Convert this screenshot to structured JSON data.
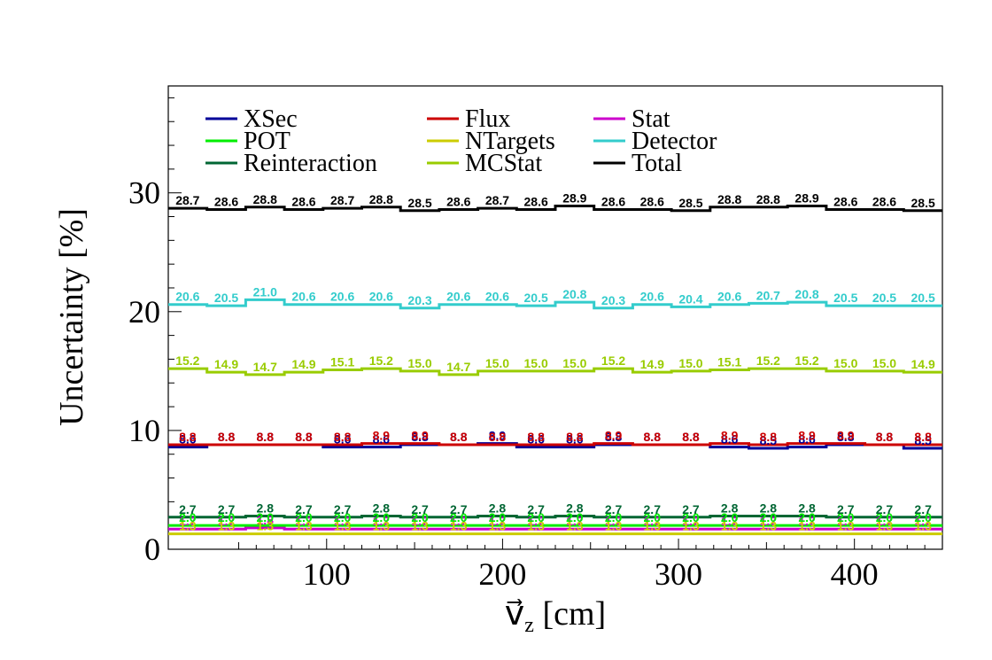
{
  "chart_data": {
    "type": "line",
    "title": "",
    "xlabel": "v_z [cm]",
    "ylabel": "Uncertainty [%]",
    "xlim": [
      10,
      450
    ],
    "ylim": [
      0,
      39
    ],
    "x_ticks": [
      100,
      200,
      300,
      400
    ],
    "y_ticks": [
      0,
      10,
      20,
      30
    ],
    "bin_edges": [
      10,
      32,
      54,
      76,
      98,
      120,
      142,
      164,
      186,
      208,
      230,
      252,
      274,
      296,
      318,
      340,
      362,
      384,
      406,
      428,
      450
    ],
    "grid": false,
    "legend_position": "top",
    "series": [
      {
        "name": "XSec",
        "color": "#000099",
        "values": [
          8.6,
          8.8,
          8.8,
          8.8,
          8.6,
          8.6,
          8.8,
          8.8,
          8.9,
          8.6,
          8.6,
          8.8,
          8.8,
          8.8,
          8.6,
          8.5,
          8.6,
          8.8,
          8.8,
          8.5
        ],
        "labels": [
          "8.6",
          "8.8",
          "8.8",
          "8.8",
          "8.6",
          "8.6",
          "8.8",
          "8.8",
          "8.9",
          "8.6",
          "8.6",
          "8.8",
          "8.8",
          "8.8",
          "8.6",
          "8.5",
          "8.6",
          "8.8",
          "8.8",
          "8.5"
        ]
      },
      {
        "name": "Flux",
        "color": "#cc0000",
        "values": [
          8.8,
          8.8,
          8.8,
          8.8,
          8.8,
          8.9,
          8.9,
          8.8,
          8.8,
          8.8,
          8.8,
          8.9,
          8.8,
          8.8,
          8.9,
          8.8,
          8.9,
          8.9,
          8.8,
          8.8
        ],
        "labels": [
          "8.8",
          "8.8",
          "8.8",
          "8.8",
          "8.8",
          "8.9",
          "8.9",
          "8.8",
          "8.8",
          "8.8",
          "8.8",
          "8.9",
          "8.8",
          "8.8",
          "8.9",
          "8.8",
          "8.9",
          "8.9",
          "8.8",
          "8.8"
        ]
      },
      {
        "name": "Stat",
        "color": "#cc00cc",
        "values": [
          1.7,
          1.7,
          1.8,
          1.7,
          1.7,
          1.7,
          1.7,
          1.7,
          1.7,
          1.7,
          1.7,
          1.7,
          1.7,
          1.7,
          1.7,
          1.7,
          1.7,
          1.7,
          1.7,
          1.7
        ],
        "labels": [
          "1.7",
          "1.7",
          "1.8",
          "1.7",
          "1.7",
          "1.7",
          "1.7",
          "1.7",
          "1.7",
          "1.7",
          "1.7",
          "1.7",
          "1.7",
          "1.7",
          "1.7",
          "1.7",
          "1.7",
          "1.7",
          "1.7",
          "1.7"
        ]
      },
      {
        "name": "POT",
        "color": "#00ee00",
        "values": [
          2.0,
          2.0,
          2.0,
          2.0,
          2.0,
          2.0,
          2.0,
          2.0,
          2.0,
          2.0,
          2.0,
          2.0,
          2.0,
          2.0,
          2.0,
          2.0,
          2.0,
          2.0,
          2.0,
          2.0
        ],
        "labels": [
          "2.0",
          "2.0",
          "2.0",
          "2.0",
          "2.0",
          "2.0",
          "2.0",
          "2.0",
          "2.0",
          "2.0",
          "2.0",
          "2.0",
          "2.0",
          "2.0",
          "2.0",
          "2.0",
          "2.0",
          "2.0",
          "2.0",
          "2.0"
        ]
      },
      {
        "name": "NTargets",
        "color": "#cccc00",
        "values": [
          1.3,
          1.3,
          1.3,
          1.3,
          1.3,
          1.3,
          1.3,
          1.3,
          1.3,
          1.3,
          1.3,
          1.3,
          1.3,
          1.3,
          1.3,
          1.3,
          1.3,
          1.3,
          1.3,
          1.3
        ],
        "labels": [
          "1.3",
          "1.3",
          "1.3",
          "1.3",
          "1.3",
          "1.3",
          "1.3",
          "1.3",
          "1.3",
          "1.3",
          "1.3",
          "1.3",
          "1.3",
          "1.3",
          "1.3",
          "1.3",
          "1.3",
          "1.3",
          "1.3",
          "1.3"
        ]
      },
      {
        "name": "Detector",
        "color": "#33cccc",
        "values": [
          20.6,
          20.5,
          21.0,
          20.6,
          20.6,
          20.6,
          20.3,
          20.6,
          20.6,
          20.5,
          20.8,
          20.3,
          20.6,
          20.4,
          20.6,
          20.7,
          20.8,
          20.5,
          20.5,
          20.5
        ],
        "labels": [
          "20.6",
          "20.5",
          "21.0",
          "20.6",
          "20.6",
          "20.6",
          "20.3",
          "20.6",
          "20.6",
          "20.5",
          "20.8",
          "20.3",
          "20.6",
          "20.4",
          "20.6",
          "20.7",
          "20.8",
          "20.5",
          "20.5",
          "20.5"
        ]
      },
      {
        "name": "Reinteraction",
        "color": "#006633",
        "values": [
          2.7,
          2.7,
          2.8,
          2.7,
          2.7,
          2.8,
          2.7,
          2.7,
          2.8,
          2.7,
          2.8,
          2.7,
          2.7,
          2.7,
          2.8,
          2.8,
          2.8,
          2.7,
          2.7,
          2.7
        ],
        "labels": [
          "2.7",
          "2.7",
          "2.8",
          "2.7",
          "2.7",
          "2.8",
          "2.7",
          "2.7",
          "2.8",
          "2.7",
          "2.8",
          "2.7",
          "2.7",
          "2.7",
          "2.8",
          "2.8",
          "2.8",
          "2.7",
          "2.7",
          "2.7"
        ]
      },
      {
        "name": "MCStat",
        "color": "#99cc00",
        "values": [
          15.2,
          14.9,
          14.7,
          14.9,
          15.1,
          15.2,
          15.0,
          14.7,
          15.0,
          15.0,
          15.0,
          15.2,
          14.9,
          15.0,
          15.1,
          15.2,
          15.2,
          15.0,
          15.0,
          14.9
        ],
        "labels": [
          "15.2",
          "14.9",
          "14.7",
          "14.9",
          "15.1",
          "15.2",
          "15.0",
          "14.7",
          "15.0",
          "15.0",
          "15.0",
          "15.2",
          "14.9",
          "15.0",
          "15.1",
          "15.2",
          "15.2",
          "15.0",
          "15.0",
          "14.9"
        ]
      },
      {
        "name": "Total",
        "color": "#000000",
        "values": [
          28.7,
          28.6,
          28.8,
          28.6,
          28.7,
          28.8,
          28.5,
          28.6,
          28.7,
          28.6,
          28.9,
          28.6,
          28.6,
          28.5,
          28.8,
          28.8,
          28.9,
          28.6,
          28.6,
          28.5
        ],
        "labels": [
          "28.7",
          "28.6",
          "28.8",
          "28.6",
          "28.7",
          "28.8",
          "28.5",
          "28.6",
          "28.7",
          "28.6",
          "28.9",
          "28.6",
          "28.6",
          "28.5",
          "28.8",
          "28.8",
          "28.9",
          "28.6",
          "28.6",
          "28.5"
        ]
      }
    ],
    "legend": [
      {
        "name": "XSec",
        "color": "#000099"
      },
      {
        "name": "Flux",
        "color": "#cc0000"
      },
      {
        "name": "Stat",
        "color": "#cc00cc"
      },
      {
        "name": "POT",
        "color": "#00ee00"
      },
      {
        "name": "NTargets",
        "color": "#cccc00"
      },
      {
        "name": "Detector",
        "color": "#33cccc"
      },
      {
        "name": "Reinteraction",
        "color": "#006633"
      },
      {
        "name": "MCStat",
        "color": "#99cc00"
      },
      {
        "name": "Total",
        "color": "#000000"
      }
    ]
  }
}
